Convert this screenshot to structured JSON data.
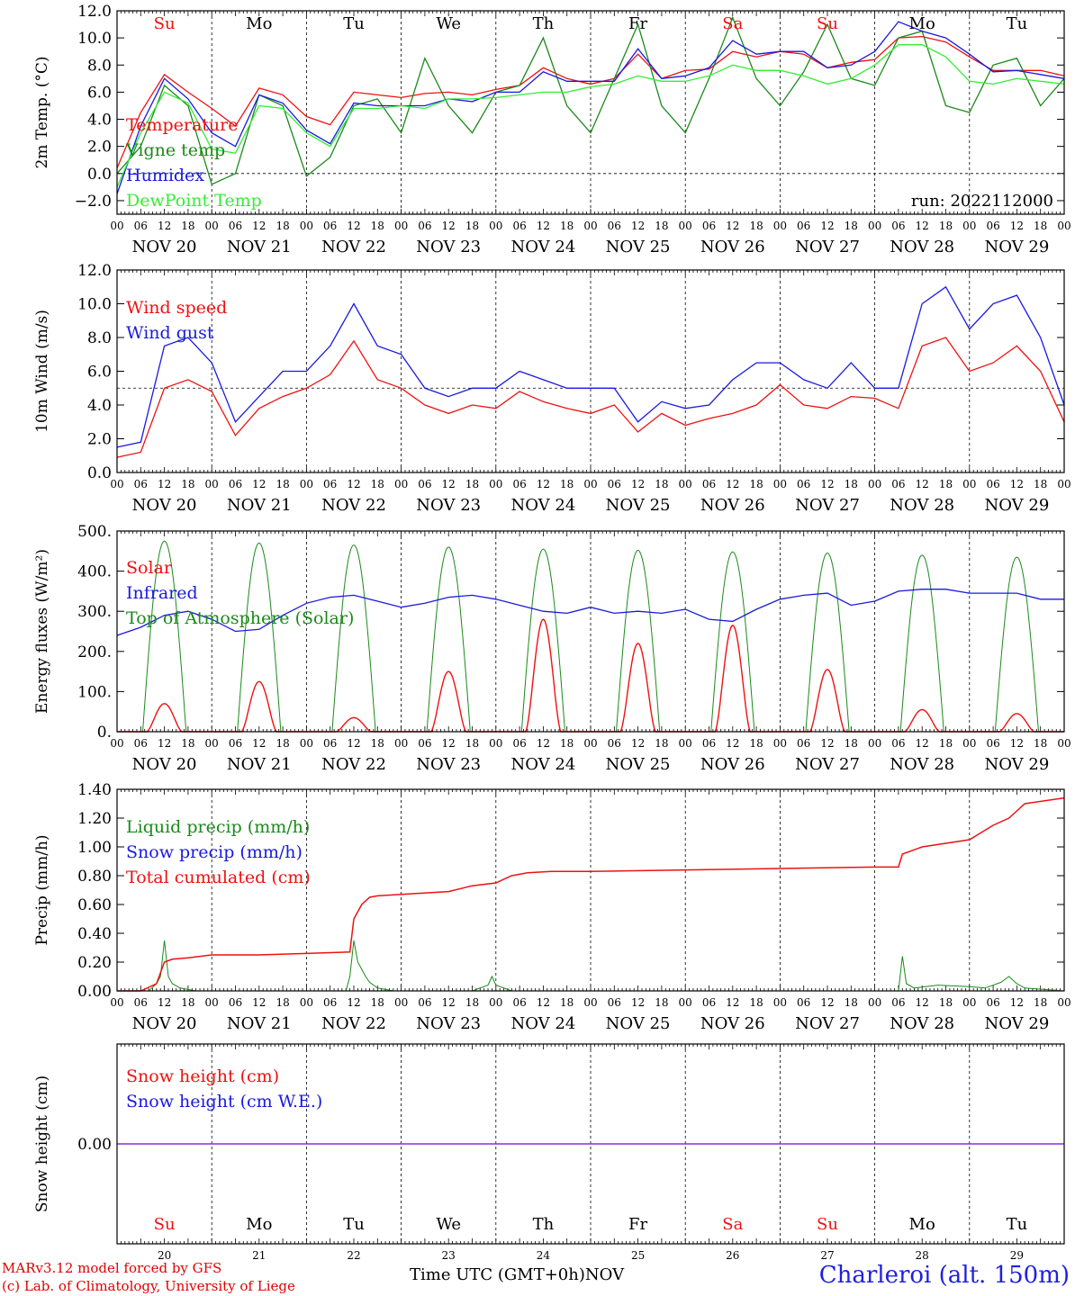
{
  "run_label": "run: 2022112000",
  "credit_lines": [
    "MARv3.12 model forced by GFS",
    "(c) Lab. of Climatology, University of Liege"
  ],
  "x_axis_label": "Time UTC (GMT+0h)",
  "month_label": "NOV",
  "station_label": "Charleroi (alt. 150m)",
  "colors": {
    "red": "#ee1111",
    "green": "#1a8a1a",
    "blue": "#1a1ae0",
    "lightgreen": "#33ee33",
    "purple": "#8a2be2"
  },
  "time": {
    "hour_ticks": [
      "00",
      "06",
      "12",
      "18"
    ],
    "days": [
      {
        "date": "NOV 20",
        "num": "20",
        "weekday": "Su",
        "weekend": true
      },
      {
        "date": "NOV 21",
        "num": "21",
        "weekday": "Mo",
        "weekend": false
      },
      {
        "date": "NOV 22",
        "num": "22",
        "weekday": "Tu",
        "weekend": false
      },
      {
        "date": "NOV 23",
        "num": "23",
        "weekday": "We",
        "weekend": false
      },
      {
        "date": "NOV 24",
        "num": "24",
        "weekday": "Th",
        "weekend": false
      },
      {
        "date": "NOV 25",
        "num": "25",
        "weekday": "Fr",
        "weekend": false
      },
      {
        "date": "NOV 26",
        "num": "26",
        "weekday": "Sa",
        "weekend": true
      },
      {
        "date": "NOV 27",
        "num": "27",
        "weekday": "Su",
        "weekend": true
      },
      {
        "date": "NOV 28",
        "num": "28",
        "weekday": "Mo",
        "weekend": false
      },
      {
        "date": "NOV 29",
        "num": "29",
        "weekday": "Tu",
        "weekend": false
      }
    ]
  },
  "chart_data": [
    {
      "type": "line",
      "ylabel": "2m Temp. (°C)",
      "ylim": [
        -3,
        12
      ],
      "yticks": [
        "−2.0",
        "0.0",
        "2.0",
        "4.0",
        "6.0",
        "8.0",
        "10.0",
        "12.0"
      ],
      "ytick_values": [
        -2,
        0,
        2,
        4,
        6,
        8,
        10,
        12
      ],
      "ref_line": 0,
      "x": [
        0,
        6,
        12,
        18,
        24,
        30,
        36,
        42,
        48,
        54,
        60,
        66,
        72,
        78,
        84,
        90,
        96,
        102,
        108,
        114,
        120,
        126,
        132,
        138,
        144,
        150,
        156,
        162,
        168,
        174,
        180,
        186,
        192,
        198,
        204,
        210,
        216,
        222,
        228,
        234,
        240
      ],
      "series": [
        {
          "name": "Temperature",
          "color": "#ee1111",
          "values": [
            0.4,
            4.5,
            7.3,
            6.0,
            4.8,
            3.5,
            6.3,
            5.8,
            4.2,
            3.6,
            6.0,
            5.8,
            5.6,
            5.9,
            6.0,
            5.8,
            6.2,
            6.5,
            7.8,
            7.0,
            6.6,
            7.0,
            8.8,
            7.0,
            7.6,
            7.7,
            9.0,
            8.6,
            9.0,
            8.8,
            7.8,
            8.2,
            8.4,
            10.0,
            10.1,
            9.7,
            8.6,
            7.6,
            7.6,
            7.6,
            7.2
          ]
        },
        {
          "name": "Vigne temp",
          "color": "#1a8a1a",
          "values": [
            0.0,
            2.0,
            6.5,
            5.0,
            -0.8,
            0.0,
            5.8,
            5.0,
            -0.2,
            1.2,
            5.0,
            5.5,
            3.0,
            8.5,
            5.0,
            3.0,
            6.0,
            6.5,
            10.0,
            5.0,
            3.0,
            7.0,
            11.0,
            5.0,
            3.0,
            7.0,
            11.5,
            7.0,
            5.0,
            7.5,
            11.0,
            7.0,
            6.5,
            10.0,
            10.5,
            5.0,
            4.5,
            8.0,
            8.5,
            5.0,
            7.0
          ]
        },
        {
          "name": "Humidex",
          "color": "#1a1ae0",
          "values": [
            -1.5,
            3.5,
            7.0,
            5.5,
            3.0,
            2.0,
            5.8,
            5.2,
            3.2,
            2.2,
            5.2,
            5.0,
            5.0,
            5.0,
            5.5,
            5.3,
            6.0,
            6.0,
            7.5,
            6.8,
            6.8,
            6.8,
            9.2,
            7.0,
            7.2,
            7.8,
            9.8,
            8.8,
            9.0,
            9.0,
            7.8,
            8.0,
            9.0,
            11.2,
            10.5,
            10.0,
            8.8,
            7.5,
            7.6,
            7.3,
            7.0
          ]
        },
        {
          "name": "DewPoint Temp",
          "color": "#33ee33",
          "values": [
            -1.0,
            3.0,
            6.0,
            5.2,
            1.8,
            1.5,
            5.0,
            4.8,
            3.0,
            2.0,
            4.8,
            4.8,
            5.0,
            4.8,
            5.5,
            5.5,
            5.6,
            5.8,
            6.0,
            6.0,
            6.4,
            6.6,
            7.2,
            6.8,
            6.8,
            7.2,
            8.0,
            7.6,
            7.6,
            7.2,
            6.6,
            7.0,
            8.0,
            9.5,
            9.5,
            8.6,
            6.8,
            6.6,
            7.0,
            6.8,
            6.6
          ]
        }
      ]
    },
    {
      "type": "line",
      "ylabel": "10m Wind (m/s)",
      "ylim": [
        0,
        12
      ],
      "yticks": [
        "0.0",
        "2.0",
        "4.0",
        "6.0",
        "8.0",
        "10.0",
        "12.0"
      ],
      "ytick_values": [
        0,
        2,
        4,
        6,
        8,
        10,
        12
      ],
      "ref_line": 5,
      "x": [
        0,
        6,
        12,
        18,
        24,
        30,
        36,
        42,
        48,
        54,
        60,
        66,
        72,
        78,
        84,
        90,
        96,
        102,
        108,
        114,
        120,
        126,
        132,
        138,
        144,
        150,
        156,
        162,
        168,
        174,
        180,
        186,
        192,
        198,
        204,
        210,
        216,
        222,
        228,
        234,
        240
      ],
      "series": [
        {
          "name": "Wind speed",
          "color": "#ee1111",
          "values": [
            0.9,
            1.2,
            5.0,
            5.5,
            4.8,
            2.2,
            3.8,
            4.5,
            5.0,
            5.8,
            7.8,
            5.5,
            5.0,
            4.0,
            3.5,
            4.0,
            3.8,
            4.8,
            4.2,
            3.8,
            3.5,
            4.0,
            2.4,
            3.5,
            2.8,
            3.2,
            3.5,
            4.0,
            5.2,
            4.0,
            3.8,
            4.5,
            4.4,
            3.8,
            7.5,
            8.0,
            6.0,
            6.5,
            7.5,
            6.0,
            3.0
          ]
        },
        {
          "name": "Wind gust",
          "color": "#1a1ae0",
          "values": [
            1.5,
            1.8,
            7.5,
            8.0,
            6.5,
            3.0,
            4.5,
            6.0,
            6.0,
            7.5,
            10.0,
            7.5,
            7.0,
            5.0,
            4.5,
            5.0,
            5.0,
            6.0,
            5.5,
            5.0,
            5.0,
            5.0,
            3.0,
            4.2,
            3.8,
            4.0,
            5.5,
            6.5,
            6.5,
            5.5,
            5.0,
            6.5,
            5.0,
            5.0,
            10.0,
            11.0,
            8.5,
            10.0,
            10.5,
            8.0,
            4.0
          ]
        }
      ]
    },
    {
      "type": "line",
      "ylabel": "Energy fluxes (W/m²)",
      "ylim": [
        0,
        500
      ],
      "yticks": [
        "0.",
        "100.",
        "200.",
        "300.",
        "400.",
        "500."
      ],
      "ytick_values": [
        0,
        100,
        200,
        300,
        400,
        500
      ],
      "ref_line": null,
      "days": 10,
      "solar_peaks": [
        70,
        125,
        35,
        150,
        280,
        220,
        265,
        155,
        55,
        45
      ],
      "toa_peaks": [
        475,
        470,
        465,
        460,
        455,
        452,
        448,
        445,
        440,
        435
      ],
      "x": [
        0,
        6,
        12,
        18,
        24,
        30,
        36,
        42,
        48,
        54,
        60,
        66,
        72,
        78,
        84,
        90,
        96,
        102,
        108,
        114,
        120,
        126,
        132,
        138,
        144,
        150,
        156,
        162,
        168,
        174,
        180,
        186,
        192,
        198,
        204,
        210,
        216,
        222,
        228,
        234,
        240
      ],
      "series": [
        {
          "name": "Solar",
          "color": "#ee1111"
        },
        {
          "name": "Infrared",
          "color": "#1a1ae0",
          "values": [
            240,
            260,
            290,
            300,
            280,
            250,
            255,
            290,
            320,
            335,
            340,
            325,
            310,
            320,
            335,
            340,
            330,
            315,
            300,
            295,
            310,
            295,
            300,
            295,
            305,
            280,
            275,
            305,
            330,
            340,
            345,
            315,
            325,
            350,
            355,
            355,
            345,
            345,
            345,
            330,
            330
          ]
        },
        {
          "name": "Top of Atmosphere (Solar)",
          "color": "#1a8a1a"
        }
      ]
    },
    {
      "type": "line",
      "ylabel": "Precip (mm/h)",
      "ylim": [
        0,
        1.4
      ],
      "yticks": [
        "0.00",
        "0.20",
        "0.40",
        "0.60",
        "0.80",
        "1.00",
        "1.20",
        "1.40"
      ],
      "ytick_values": [
        0,
        0.2,
        0.4,
        0.6,
        0.8,
        1.0,
        1.2,
        1.4
      ],
      "ref_line": null,
      "cumulative": {
        "x": [
          0,
          6,
          10,
          12,
          14,
          18,
          24,
          36,
          48,
          59,
          60,
          62,
          64,
          66,
          72,
          84,
          90,
          96,
          100,
          102,
          104,
          110,
          120,
          144,
          168,
          192,
          198,
          199,
          204,
          216,
          222,
          226,
          228,
          230,
          240
        ],
        "values": [
          0,
          0,
          0.05,
          0.2,
          0.22,
          0.23,
          0.25,
          0.25,
          0.26,
          0.27,
          0.5,
          0.6,
          0.65,
          0.66,
          0.67,
          0.69,
          0.73,
          0.75,
          0.8,
          0.81,
          0.82,
          0.83,
          0.83,
          0.84,
          0.85,
          0.86,
          0.86,
          0.95,
          1.0,
          1.05,
          1.15,
          1.2,
          1.25,
          1.3,
          1.34
        ]
      },
      "liquid": {
        "x": [
          0,
          8,
          10,
          11,
          12,
          13,
          14,
          16,
          20,
          48,
          58,
          59,
          60,
          61,
          62,
          63,
          64,
          66,
          70,
          90,
          94,
          95,
          96,
          100,
          150,
          190,
          198,
          199,
          200,
          202,
          208,
          216,
          220,
          224,
          226,
          228,
          230,
          240
        ],
        "values": [
          0,
          0,
          0.05,
          0.1,
          0.35,
          0.1,
          0.05,
          0.02,
          0,
          0,
          0,
          0.1,
          0.35,
          0.2,
          0.15,
          0.1,
          0.06,
          0.02,
          0,
          0,
          0.04,
          0.1,
          0.04,
          0,
          0,
          0,
          0,
          0.24,
          0.05,
          0.02,
          0.04,
          0.03,
          0.02,
          0.06,
          0.1,
          0.05,
          0.02,
          0
        ]
      },
      "series": [
        {
          "name": "Liquid precip (mm/h)",
          "color": "#1a8a1a"
        },
        {
          "name": "Snow precip (mm/h)",
          "color": "#1a1ae0"
        },
        {
          "name": "Total cumulated (cm)",
          "color": "#ee1111"
        }
      ]
    },
    {
      "type": "line",
      "ylabel": "Snow height (cm)",
      "ylim": [
        -1,
        1
      ],
      "yticks": [
        "0.00"
      ],
      "ytick_values": [
        0
      ],
      "ref_line": null,
      "x": [
        0,
        240
      ],
      "series": [
        {
          "name": "Snow height (cm)",
          "color": "#ee1111",
          "values": [
            0,
            0
          ]
        },
        {
          "name": "Snow height (cm W.E.)",
          "color": "#1a1ae0",
          "values": [
            0,
            0
          ]
        }
      ]
    }
  ]
}
